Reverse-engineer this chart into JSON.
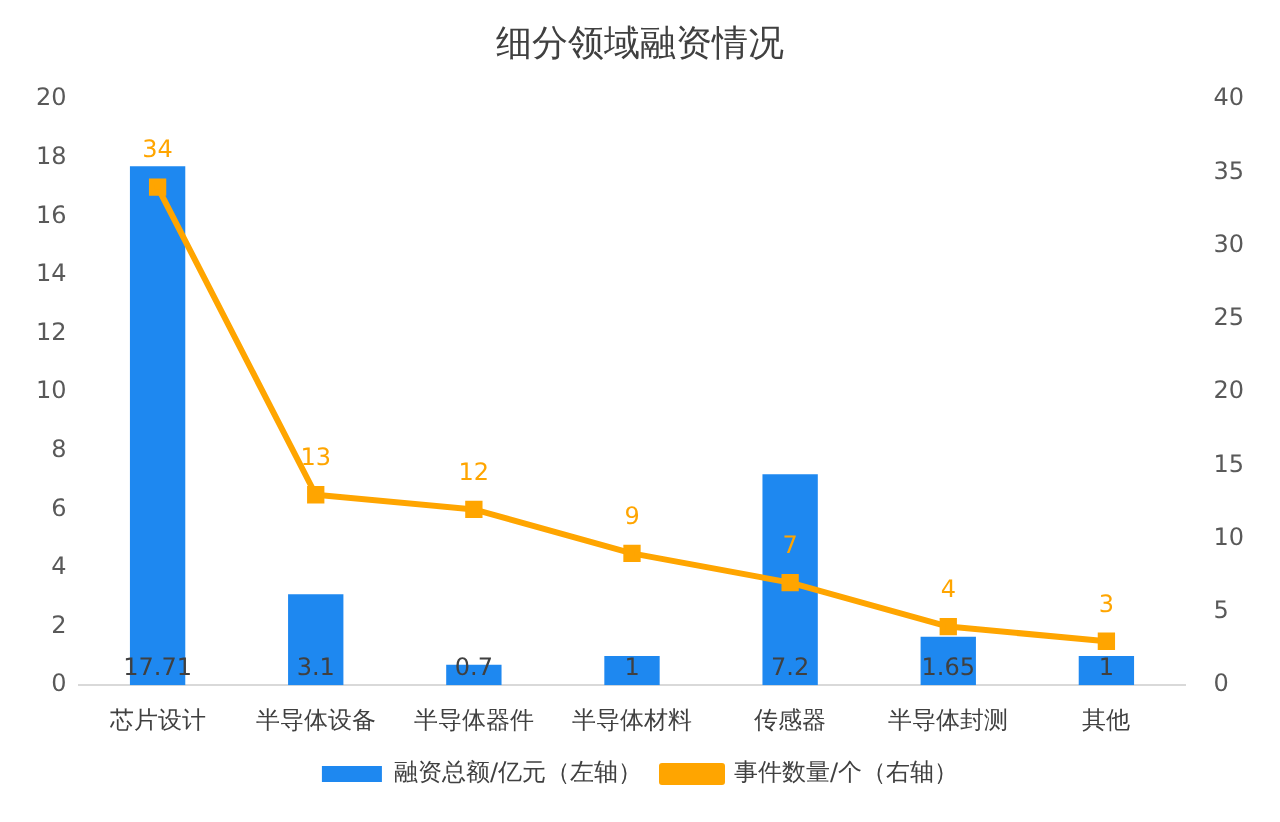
{
  "chart_data": {
    "type": "bar",
    "title": "细分领域融资情况",
    "categories": [
      "芯片设计",
      "半导体设备",
      "半导体器件",
      "半导体材料",
      "传感器",
      "半导体封测",
      "其他"
    ],
    "series": [
      {
        "name": "融资总额/亿元（左轴）",
        "color": "#1e88f0",
        "values": [
          17.71,
          3.1,
          0.7,
          1,
          7.2,
          1.65,
          1
        ]
      },
      {
        "name": "事件数量/个（右轴）",
        "type": "line",
        "axis": "y2",
        "color": "#ffa500",
        "values": [
          34,
          13,
          12,
          9,
          7,
          4,
          3
        ]
      }
    ],
    "ylim": [
      0,
      20
    ],
    "yticks": [
      0,
      2,
      4,
      6,
      8,
      10,
      12,
      14,
      16,
      18,
      20
    ],
    "y2lim": [
      0,
      40
    ],
    "y2ticks": [
      0,
      5,
      10,
      15,
      20,
      25,
      30,
      35,
      40
    ],
    "grid": false,
    "legend": "bottom",
    "marker": "square",
    "line_style": "solid",
    "data_labels": true
  }
}
